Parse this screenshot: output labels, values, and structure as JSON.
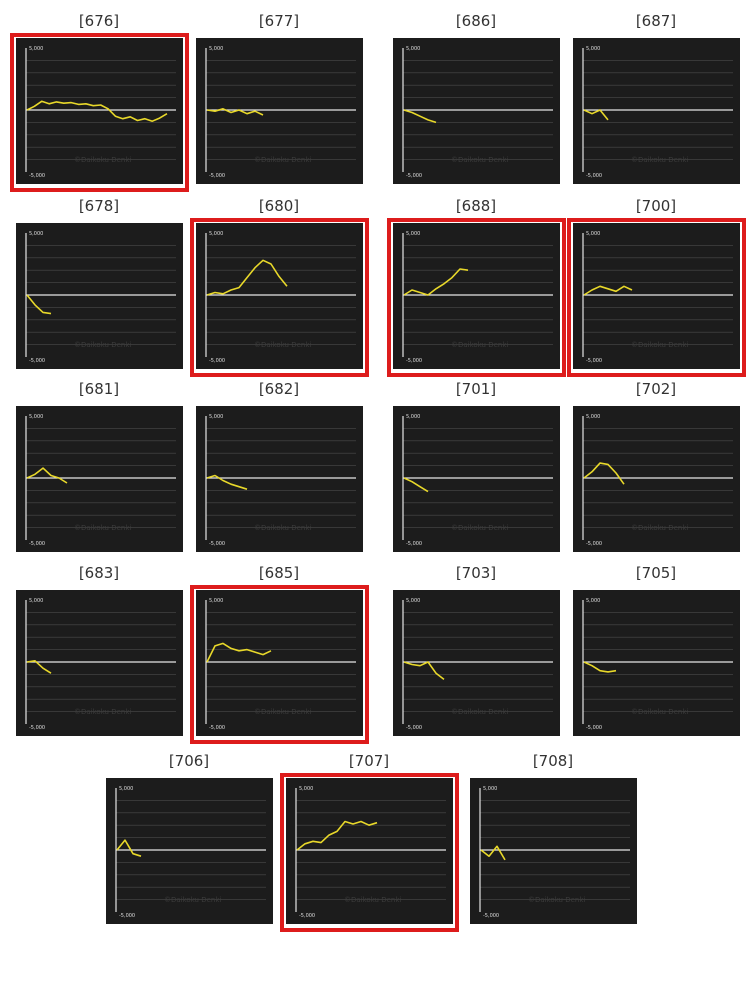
{
  "axis": {
    "top_label": "5,000",
    "bottom_label": "-5,000",
    "ylim": [
      -5000,
      5000
    ]
  },
  "watermark": "©Daikoku Denki",
  "colors": {
    "panel": "#1c1c1c",
    "line": "#e8d82a",
    "zero": "#e6e6e6",
    "grid": "#4a4a4a",
    "highlight": "#dd1c1c"
  },
  "chart_data": [
    {
      "type": "line",
      "label": "[676]",
      "highlighted": true,
      "values": [
        0,
        300,
        700,
        500,
        650,
        550,
        600,
        450,
        500,
        350,
        400,
        100,
        -500,
        -700,
        -550,
        -850,
        -700,
        -900,
        -650,
        -300
      ]
    },
    {
      "type": "line",
      "label": "[677]",
      "highlighted": false,
      "values": [
        0,
        -100,
        100,
        -200,
        0,
        -300,
        -100,
        -400
      ]
    },
    {
      "type": "line",
      "label": "[686]",
      "highlighted": false,
      "values": [
        0,
        -200,
        -500,
        -800,
        -1000
      ]
    },
    {
      "type": "line",
      "label": "[687]",
      "highlighted": false,
      "values": [
        0,
        -300,
        0,
        -800
      ]
    },
    {
      "type": "line",
      "label": "[678]",
      "highlighted": false,
      "values": [
        0,
        -800,
        -1400,
        -1500
      ]
    },
    {
      "type": "line",
      "label": "[680]",
      "highlighted": true,
      "values": [
        0,
        200,
        100,
        400,
        600,
        1400,
        2200,
        2800,
        2500,
        1500,
        700
      ]
    },
    {
      "type": "line",
      "label": "[688]",
      "highlighted": true,
      "values": [
        0,
        400,
        200,
        0,
        500,
        900,
        1400,
        2100,
        2000
      ]
    },
    {
      "type": "line",
      "label": "[700]",
      "highlighted": true,
      "values": [
        0,
        400,
        700,
        500,
        300,
        700,
        400
      ]
    },
    {
      "type": "line",
      "label": "[681]",
      "highlighted": false,
      "values": [
        0,
        300,
        800,
        200,
        0,
        -400
      ]
    },
    {
      "type": "line",
      "label": "[682]",
      "highlighted": false,
      "values": [
        0,
        200,
        -200,
        -500,
        -700,
        -900
      ]
    },
    {
      "type": "line",
      "label": "[701]",
      "highlighted": false,
      "values": [
        0,
        -300,
        -700,
        -1100
      ]
    },
    {
      "type": "line",
      "label": "[702]",
      "highlighted": false,
      "values": [
        0,
        500,
        1200,
        1100,
        400,
        -500
      ]
    },
    {
      "type": "line",
      "label": "[683]",
      "highlighted": false,
      "values": [
        0,
        100,
        -500,
        -900
      ]
    },
    {
      "type": "line",
      "label": "[685]",
      "highlighted": true,
      "values": [
        0,
        1300,
        1500,
        1100,
        900,
        1000,
        800,
        600,
        900
      ]
    },
    {
      "type": "line",
      "label": "[703]",
      "highlighted": false,
      "values": [
        0,
        -200,
        -300,
        0,
        -900,
        -1400
      ]
    },
    {
      "type": "line",
      "label": "[705]",
      "highlighted": false,
      "values": [
        0,
        -300,
        -700,
        -800,
        -700
      ]
    },
    {
      "type": "line",
      "label": "[706]",
      "highlighted": false,
      "values": [
        0,
        800,
        -300,
        -500
      ]
    },
    {
      "type": "line",
      "label": "[707]",
      "highlighted": true,
      "values": [
        0,
        500,
        700,
        600,
        1200,
        1500,
        2300,
        2100,
        2300,
        2000,
        2200
      ]
    },
    {
      "type": "line",
      "label": "[708]",
      "highlighted": false,
      "values": [
        0,
        -500,
        300,
        -800
      ]
    }
  ]
}
